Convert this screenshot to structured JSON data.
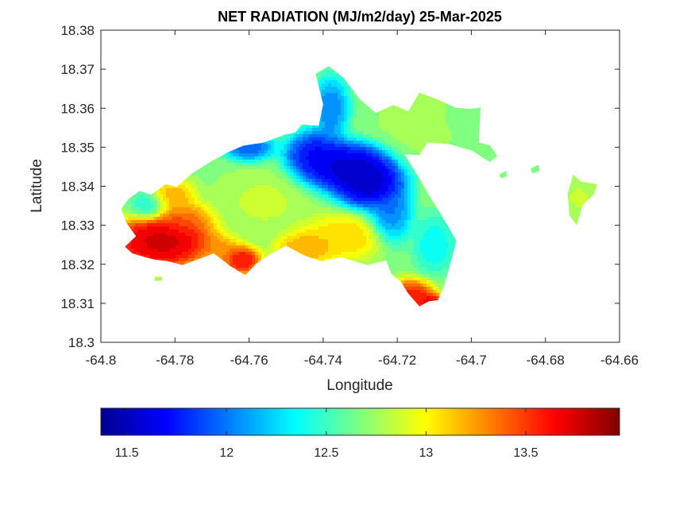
{
  "chart_data": {
    "type": "heatmap",
    "title": "NET RADIATION (MJ/m2/day) 25-Mar-2025",
    "xlabel": "Longitude",
    "ylabel": "Latitude",
    "xlim": [
      -64.8,
      -64.66
    ],
    "ylim": [
      18.3,
      18.38
    ],
    "x_ticks": [
      -64.8,
      -64.78,
      -64.76,
      -64.74,
      -64.72,
      -64.7,
      -64.68,
      -64.66
    ],
    "x_tick_labels": [
      "-64.8",
      "-64.78",
      "-64.76",
      "-64.74",
      "-64.72",
      "-64.7",
      "-64.68",
      "-64.66"
    ],
    "y_ticks": [
      18.3,
      18.31,
      18.32,
      18.33,
      18.34,
      18.35,
      18.36,
      18.37,
      18.38
    ],
    "y_tick_labels": [
      "18.3",
      "18.31",
      "18.32",
      "18.33",
      "18.34",
      "18.35",
      "18.36",
      "18.37",
      "18.38"
    ],
    "colormap": "jet",
    "colorbar": {
      "position": "bottom",
      "range": [
        11.37,
        13.97
      ],
      "ticks": [
        11.5,
        12,
        12.5,
        13,
        13.5
      ],
      "tick_labels": [
        "11.5",
        "12",
        "12.5",
        "13",
        "13.5"
      ]
    },
    "grid": false,
    "land_outline": [
      [
        -64.7925,
        18.3368
      ],
      [
        -64.7895,
        18.3388
      ],
      [
        -64.7865,
        18.3378
      ],
      [
        -64.7825,
        18.3405
      ],
      [
        -64.7795,
        18.3398
      ],
      [
        -64.7755,
        18.3432
      ],
      [
        -64.7705,
        18.3462
      ],
      [
        -64.7655,
        18.3488
      ],
      [
        -64.7615,
        18.3504
      ],
      [
        -64.756,
        18.3512
      ],
      [
        -64.7505,
        18.3532
      ],
      [
        -64.7475,
        18.3538
      ],
      [
        -64.7458,
        18.3558
      ],
      [
        -64.7412,
        18.3555
      ],
      [
        -64.74,
        18.361
      ],
      [
        -64.742,
        18.3688
      ],
      [
        -64.7385,
        18.3708
      ],
      [
        -64.7345,
        18.3678
      ],
      [
        -64.73,
        18.3622
      ],
      [
        -64.7258,
        18.3588
      ],
      [
        -64.721,
        18.3608
      ],
      [
        -64.717,
        18.3592
      ],
      [
        -64.714,
        18.364
      ],
      [
        -64.7085,
        18.362
      ],
      [
        -64.7045,
        18.3602
      ],
      [
        -64.7005,
        18.3598
      ],
      [
        -64.6975,
        18.3602
      ],
      [
        -64.698,
        18.3512
      ],
      [
        -64.695,
        18.3505
      ],
      [
        -64.693,
        18.3478
      ],
      [
        -64.695,
        18.3462
      ],
      [
        -64.7,
        18.3492
      ],
      [
        -64.706,
        18.3508
      ],
      [
        -64.7118,
        18.3512
      ],
      [
        -64.714,
        18.348
      ],
      [
        -64.718,
        18.3482
      ],
      [
        -64.714,
        18.342
      ],
      [
        -64.7115,
        18.3378
      ],
      [
        -64.708,
        18.3325
      ],
      [
        -64.704,
        18.326
      ],
      [
        -64.706,
        18.319
      ],
      [
        -64.7075,
        18.314
      ],
      [
        -64.709,
        18.3108
      ],
      [
        -64.7115,
        18.3105
      ],
      [
        -64.714,
        18.3092
      ],
      [
        -64.717,
        18.3125
      ],
      [
        -64.719,
        18.3155
      ],
      [
        -64.7215,
        18.3175
      ],
      [
        -64.723,
        18.321
      ],
      [
        -64.728,
        18.3198
      ],
      [
        -64.735,
        18.3218
      ],
      [
        -64.7405,
        18.3208
      ],
      [
        -64.745,
        18.3222
      ],
      [
        -64.75,
        18.3248
      ],
      [
        -64.7545,
        18.3225
      ],
      [
        -64.758,
        18.3202
      ],
      [
        -64.761,
        18.3172
      ],
      [
        -64.765,
        18.3195
      ],
      [
        -64.7695,
        18.3228
      ],
      [
        -64.774,
        18.3212
      ],
      [
        -64.778,
        18.3198
      ],
      [
        -64.782,
        18.3208
      ],
      [
        -64.7855,
        18.3212
      ],
      [
        -64.788,
        18.3218
      ],
      [
        -64.7915,
        18.3228
      ],
      [
        -64.7935,
        18.3245
      ],
      [
        -64.7905,
        18.3272
      ],
      [
        -64.793,
        18.3305
      ],
      [
        -64.7945,
        18.3342
      ]
    ],
    "east_islet_outline": [
      [
        -64.6725,
        18.343
      ],
      [
        -64.6705,
        18.3412
      ],
      [
        -64.666,
        18.3405
      ],
      [
        -64.667,
        18.3378
      ],
      [
        -64.67,
        18.3352
      ],
      [
        -64.6715,
        18.33
      ],
      [
        -64.6735,
        18.3325
      ],
      [
        -64.674,
        18.338
      ]
    ],
    "small_islets": [
      [
        [
          -64.7855,
          18.3168
        ],
        [
          -64.7835,
          18.3168
        ],
        [
          -64.7835,
          18.3158
        ],
        [
          -64.7855,
          18.3158
        ]
      ],
      [
        [
          -64.684,
          18.3445
        ],
        [
          -64.682,
          18.3455
        ],
        [
          -64.6815,
          18.344
        ],
        [
          -64.6835,
          18.3432
        ]
      ],
      [
        [
          -64.6925,
          18.343
        ],
        [
          -64.6905,
          18.344
        ],
        [
          -64.6905,
          18.3425
        ],
        [
          -64.692,
          18.342
        ]
      ]
    ],
    "hotspots": [
      {
        "lon": -64.7828,
        "lat": 18.3258,
        "value": 13.9,
        "sx": 0.006,
        "sy": 0.0032,
        "weight": 1.1
      },
      {
        "lon": -64.788,
        "lat": 18.3262,
        "value": 13.75,
        "sx": 0.0035,
        "sy": 0.0022,
        "weight": 0.7
      },
      {
        "lon": -64.7775,
        "lat": 18.3312,
        "value": 13.5,
        "sx": 0.004,
        "sy": 0.0025,
        "weight": 0.5
      },
      {
        "lon": -64.762,
        "lat": 18.321,
        "value": 13.8,
        "sx": 0.0025,
        "sy": 0.0018,
        "weight": 0.8
      },
      {
        "lon": -64.768,
        "lat": 18.3238,
        "value": 13.4,
        "sx": 0.003,
        "sy": 0.002,
        "weight": 0.5
      },
      {
        "lon": -64.7805,
        "lat": 18.3375,
        "value": 13.3,
        "sx": 0.003,
        "sy": 0.0022,
        "weight": 0.6
      },
      {
        "lon": -64.733,
        "lat": 18.3448,
        "value": 11.45,
        "sx": 0.006,
        "sy": 0.003,
        "weight": 1.2
      },
      {
        "lon": -64.7275,
        "lat": 18.3405,
        "value": 11.4,
        "sx": 0.0045,
        "sy": 0.003,
        "weight": 1.0
      },
      {
        "lon": -64.742,
        "lat": 18.3482,
        "value": 11.55,
        "sx": 0.004,
        "sy": 0.003,
        "weight": 0.8
      },
      {
        "lon": -64.738,
        "lat": 18.36,
        "value": 11.9,
        "sx": 0.0025,
        "sy": 0.004,
        "weight": 0.7
      },
      {
        "lon": -64.722,
        "lat": 18.333,
        "value": 11.85,
        "sx": 0.003,
        "sy": 0.004,
        "weight": 0.6
      },
      {
        "lon": -64.76,
        "lat": 18.35,
        "value": 11.75,
        "sx": 0.0035,
        "sy": 0.0018,
        "weight": 0.6
      },
      {
        "lon": -64.71,
        "lat": 18.325,
        "value": 12.25,
        "sx": 0.003,
        "sy": 0.004,
        "weight": 0.5
      },
      {
        "lon": -64.7345,
        "lat": 18.327,
        "value": 13.2,
        "sx": 0.006,
        "sy": 0.003,
        "weight": 0.6
      },
      {
        "lon": -64.745,
        "lat": 18.324,
        "value": 13.35,
        "sx": 0.004,
        "sy": 0.0022,
        "weight": 0.6
      },
      {
        "lon": -64.716,
        "lat": 18.312,
        "value": 13.75,
        "sx": 0.003,
        "sy": 0.002,
        "weight": 0.8
      },
      {
        "lon": -64.711,
        "lat": 18.31,
        "value": 13.9,
        "sx": 0.0018,
        "sy": 0.0012,
        "weight": 0.8
      },
      {
        "lon": -64.756,
        "lat": 18.336,
        "value": 12.9,
        "sx": 0.006,
        "sy": 0.004,
        "weight": 0.4
      },
      {
        "lon": -64.715,
        "lat": 18.356,
        "value": 12.75,
        "sx": 0.005,
        "sy": 0.005,
        "weight": 0.9
      },
      {
        "lon": -64.701,
        "lat": 18.358,
        "value": 12.65,
        "sx": 0.003,
        "sy": 0.002,
        "weight": 0.5
      },
      {
        "lon": -64.671,
        "lat": 18.337,
        "value": 12.85,
        "sx": 0.003,
        "sy": 0.003,
        "weight": 0.8
      },
      {
        "lon": -64.787,
        "lat": 18.335,
        "value": 12.3,
        "sx": 0.0025,
        "sy": 0.002,
        "weight": 0.5
      }
    ],
    "default_value": 12.7
  }
}
